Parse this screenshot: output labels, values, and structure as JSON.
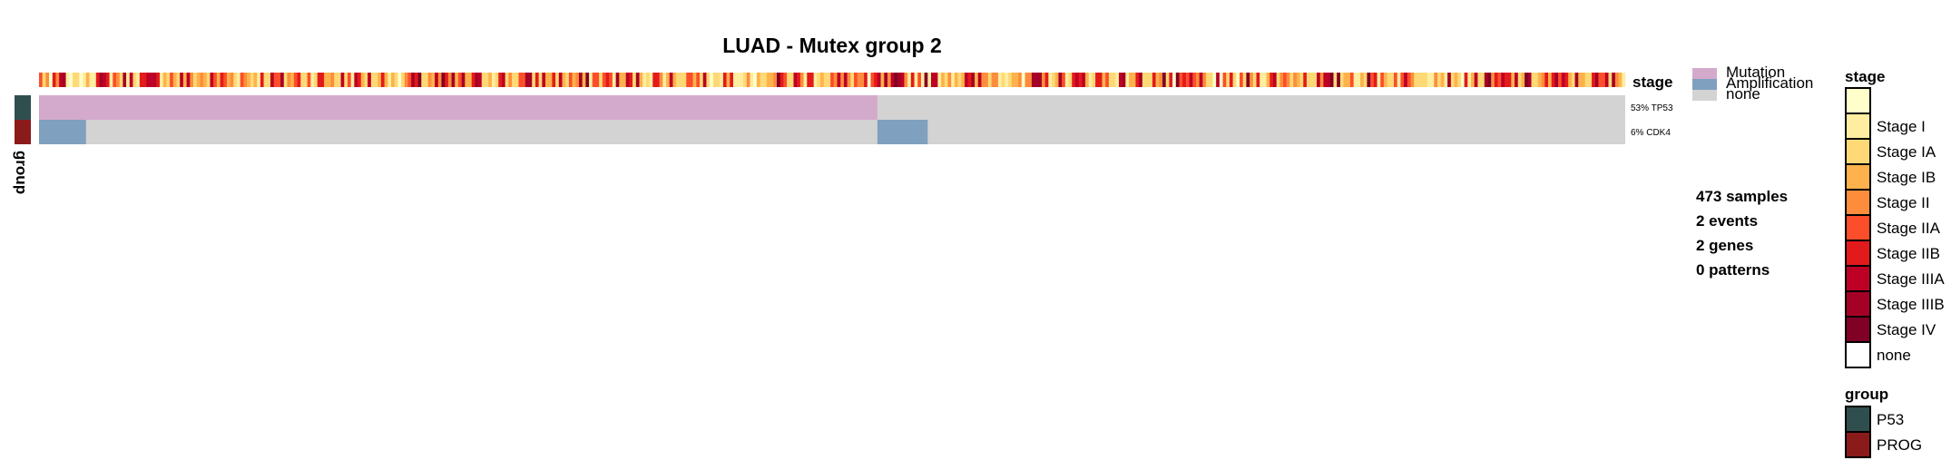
{
  "chart_data": {
    "type": "oncoprint-heatmap",
    "title": "LUAD - Mutex group 2",
    "n_samples": 473,
    "stage_track": {
      "label": "stage",
      "levels": [
        "",
        "Stage I",
        "Stage IA",
        "Stage IB",
        "Stage II",
        "Stage IIA",
        "Stage IIB",
        "Stage IIIA",
        "Stage IIIB",
        "Stage IV",
        "none"
      ],
      "colors": [
        "#FFFFCC",
        "#FFEDA0",
        "#FED976",
        "#FEB24C",
        "#FD8D3C",
        "#FC4E2A",
        "#E31A1C",
        "#BD0026",
        "#A50026",
        "#800026",
        "#FFFFFF"
      ]
    },
    "genes": [
      {
        "name": "TP53",
        "percent": "53%",
        "label": "53% TP53",
        "group": "P53",
        "segments": [
          {
            "start": 0,
            "end": 250,
            "alteration": "Mutation"
          }
        ]
      },
      {
        "name": "CDK4",
        "percent": "6%",
        "label": "6% CDK4",
        "group": "PROG",
        "segments": [
          {
            "start": 0,
            "end": 14,
            "alteration": "Amplification"
          },
          {
            "start": 250,
            "end": 265,
            "alteration": "Amplification"
          }
        ]
      }
    ],
    "alteration_legend": [
      {
        "name": "Mutation",
        "color": "#D4AACC"
      },
      {
        "name": "Amplification",
        "color": "#7FA0BF"
      },
      {
        "name": "none",
        "color": "#D3D3D3"
      }
    ],
    "summary": [
      "473 samples",
      "2 events",
      "2 genes",
      "0 patterns"
    ],
    "group_track": {
      "label": "group",
      "groups": [
        {
          "name": "P53",
          "color": "#2F4F4F"
        },
        {
          "name": "PROG",
          "color": "#8B1A1A"
        }
      ]
    },
    "stage_legend_title": "stage",
    "group_legend_title": "group"
  }
}
